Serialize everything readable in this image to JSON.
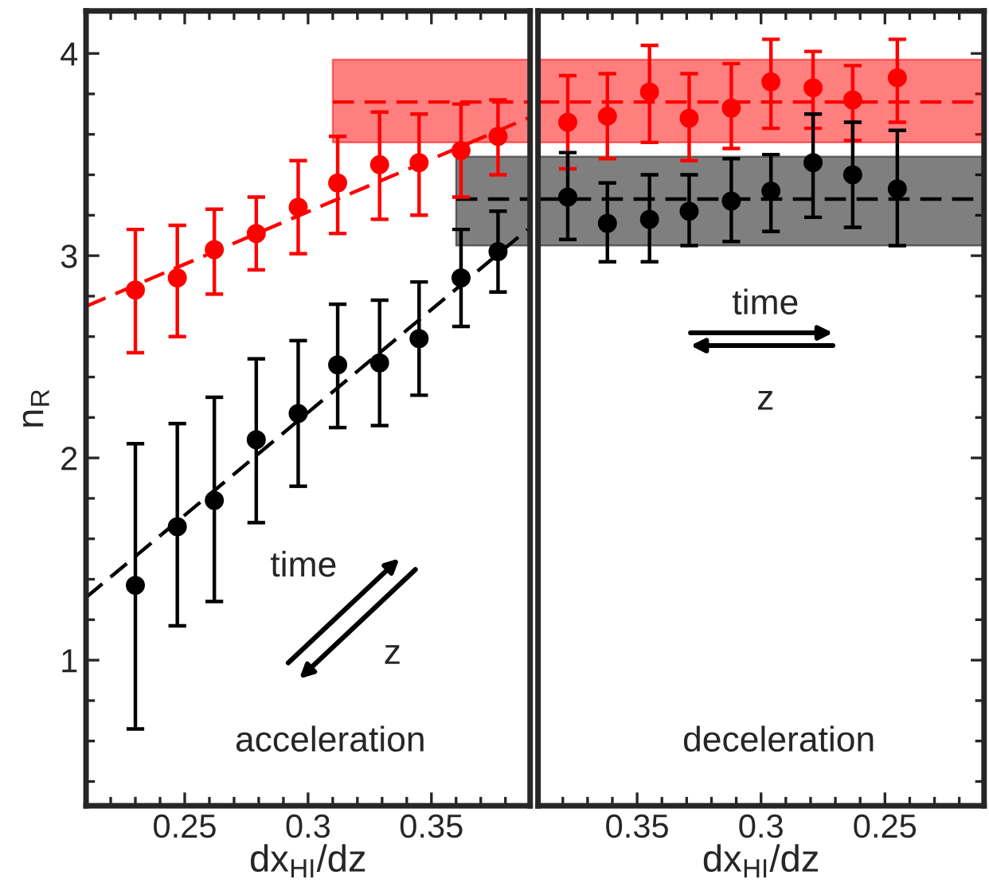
{
  "chart_data": [
    {
      "type": "scatter",
      "xlabel": "dx$_{HI}$/dz",
      "ylabel": "n$_{R}$",
      "xlim": [
        0.21,
        0.39
      ],
      "ylim": [
        0.28,
        4.21
      ],
      "xticks": [
        {
          "value": 0.22,
          "label": null
        },
        {
          "value": 0.23,
          "label": null
        },
        {
          "value": 0.24,
          "label": null
        },
        0.25,
        {
          "value": 0.26,
          "label": null
        },
        {
          "value": 0.27,
          "label": null
        },
        {
          "value": 0.28,
          "label": null
        },
        {
          "value": 0.29,
          "label": null
        },
        0.3,
        {
          "value": 0.31,
          "label": null
        },
        {
          "value": 0.32,
          "label": null
        },
        {
          "value": 0.33,
          "label": null
        },
        {
          "value": 0.34,
          "label": null
        },
        0.35,
        {
          "value": 0.36,
          "label": null
        },
        {
          "value": 0.37,
          "label": null
        },
        {
          "value": 0.38,
          "label": null
        }
      ],
      "yticks": [
        {
          "value": 0.4,
          "label": null
        },
        {
          "value": 0.6,
          "label": null
        },
        {
          "value": 0.8,
          "label": null
        },
        1,
        {
          "value": 1.2,
          "label": null
        },
        {
          "value": 1.4,
          "label": null
        },
        {
          "value": 1.6,
          "label": null
        },
        {
          "value": 1.8,
          "label": null
        },
        2,
        {
          "value": 2.2,
          "label": null
        },
        {
          "value": 2.4,
          "label": null
        },
        {
          "value": 2.6,
          "label": null
        },
        {
          "value": 2.8,
          "label": null
        },
        3,
        {
          "value": 3.2,
          "label": null
        },
        {
          "value": 3.4,
          "label": null
        },
        {
          "value": 3.6,
          "label": null
        },
        {
          "value": 3.8,
          "label": null
        },
        4
      ],
      "grid": false,
      "legend": false,
      "series": [
        {
          "type": "line",
          "color": "#ff0000",
          "x": [
            0.31,
            0.39
          ],
          "values": [
            3.76,
            3.76
          ],
          "lower": [
            3.56,
            3.56
          ],
          "upper": [
            3.97,
            3.97
          ],
          "line_style": "dashed"
        },
        {
          "type": "line",
          "color": "#000000",
          "x": [
            0.36,
            0.39
          ],
          "values": [
            3.28,
            3.28
          ],
          "lower": [
            3.05,
            3.05
          ],
          "upper": [
            3.49,
            3.49
          ],
          "line_style": "dashed"
        },
        {
          "type": "line",
          "color": "#ff0000",
          "x": [
            0.21,
            0.389
          ],
          "values": [
            2.75,
            3.68
          ],
          "line_style": "dashed"
        },
        {
          "type": "line",
          "color": "#000000",
          "x": [
            0.21,
            0.389
          ],
          "values": [
            1.31,
            3.13
          ],
          "line_style": "dashed"
        },
        {
          "marker": "circle",
          "color": "#ff0000",
          "x": [
            0.23,
            0.247,
            0.262,
            0.279,
            0.296,
            0.312,
            0.329,
            0.345,
            0.362,
            0.377
          ],
          "values": [
            2.83,
            2.89,
            3.03,
            3.11,
            3.24,
            3.36,
            3.45,
            3.46,
            3.52,
            3.59
          ],
          "errors": [
            [
              2.52,
              3.13
            ],
            [
              2.6,
              3.15
            ],
            [
              2.81,
              3.23
            ],
            [
              2.93,
              3.29
            ],
            [
              3.01,
              3.47
            ],
            [
              3.11,
              3.59
            ],
            [
              3.18,
              3.71
            ],
            [
              3.2,
              3.7
            ],
            [
              3.29,
              3.75
            ],
            [
              3.4,
              3.77
            ]
          ]
        },
        {
          "marker": "circle",
          "color": "#000000",
          "x": [
            0.23,
            0.247,
            0.262,
            0.279,
            0.296,
            0.312,
            0.329,
            0.345,
            0.362,
            0.377
          ],
          "values": [
            1.37,
            1.66,
            1.79,
            2.09,
            2.22,
            2.46,
            2.47,
            2.59,
            2.89,
            3.02
          ],
          "errors": [
            [
              0.66,
              2.07
            ],
            [
              1.17,
              2.17
            ],
            [
              1.29,
              2.3
            ],
            [
              1.68,
              2.49
            ],
            [
              1.86,
              2.58
            ],
            [
              2.15,
              2.76
            ],
            [
              2.16,
              2.78
            ],
            [
              2.31,
              2.87
            ],
            [
              2.65,
              3.13
            ],
            [
              2.82,
              3.22
            ]
          ]
        }
      ],
      "annotations": [
        "time",
        "z",
        "acceleration"
      ]
    },
    {
      "type": "scatter",
      "xlabel": "dx$_{HI}$/dz",
      "xlim": [
        0.39,
        0.21
      ],
      "ylim": [
        0.28,
        4.21
      ],
      "tick_labels": "x",
      "xticks": [
        {
          "value": 0.38,
          "label": null
        },
        {
          "value": 0.37,
          "label": null
        },
        {
          "value": 0.36,
          "label": null
        },
        0.35,
        {
          "value": 0.34,
          "label": null
        },
        {
          "value": 0.33,
          "label": null
        },
        {
          "value": 0.32,
          "label": null
        },
        {
          "value": 0.31,
          "label": null
        },
        0.3,
        {
          "value": 0.29,
          "label": null
        },
        {
          "value": 0.28,
          "label": null
        },
        {
          "value": 0.27,
          "label": null
        },
        {
          "value": 0.26,
          "label": null
        },
        0.25,
        {
          "value": 0.24,
          "label": null
        },
        {
          "value": 0.23,
          "label": null
        },
        {
          "value": 0.22,
          "label": null
        }
      ],
      "yticks": [
        {
          "value": 0.4,
          "label": null
        },
        {
          "value": 0.6,
          "label": null
        },
        {
          "value": 0.8,
          "label": null
        },
        1,
        {
          "value": 1.2,
          "label": null
        },
        {
          "value": 1.4,
          "label": null
        },
        {
          "value": 1.6,
          "label": null
        },
        {
          "value": 1.8,
          "label": null
        },
        2,
        {
          "value": 2.2,
          "label": null
        },
        {
          "value": 2.4,
          "label": null
        },
        {
          "value": 2.6,
          "label": null
        },
        {
          "value": 2.8,
          "label": null
        },
        3,
        {
          "value": 3.2,
          "label": null
        },
        {
          "value": 3.4,
          "label": null
        },
        {
          "value": 3.6,
          "label": null
        },
        {
          "value": 3.8,
          "label": null
        },
        4
      ],
      "grid": false,
      "legend": false,
      "series": [
        {
          "type": "line",
          "color": "#ff0000",
          "x": [
            0.39,
            0.21
          ],
          "values": [
            3.76,
            3.76
          ],
          "lower": [
            3.56,
            3.56
          ],
          "upper": [
            3.97,
            3.97
          ],
          "line_style": "dashed"
        },
        {
          "type": "line",
          "color": "#000000",
          "x": [
            0.39,
            0.21
          ],
          "values": [
            3.28,
            3.28
          ],
          "lower": [
            3.05,
            3.05
          ],
          "upper": [
            3.49,
            3.49
          ],
          "line_style": "dashed"
        },
        {
          "marker": "circle",
          "color": "#ff0000",
          "x": [
            0.378,
            0.362,
            0.345,
            0.329,
            0.312,
            0.296,
            0.279,
            0.263,
            0.245
          ],
          "values": [
            3.66,
            3.69,
            3.81,
            3.68,
            3.73,
            3.86,
            3.83,
            3.77,
            3.88
          ],
          "errors": [
            [
              3.43,
              3.89
            ],
            [
              3.48,
              3.9
            ],
            [
              3.56,
              4.04
            ],
            [
              3.47,
              3.9
            ],
            [
              3.53,
              3.95
            ],
            [
              3.63,
              4.07
            ],
            [
              3.63,
              4.01
            ],
            [
              3.57,
              3.94
            ],
            [
              3.66,
              4.07
            ]
          ]
        },
        {
          "marker": "circle",
          "color": "#000000",
          "x": [
            0.378,
            0.362,
            0.345,
            0.329,
            0.312,
            0.296,
            0.279,
            0.263,
            0.245
          ],
          "values": [
            3.29,
            3.16,
            3.18,
            3.22,
            3.27,
            3.32,
            3.46,
            3.4,
            3.33
          ],
          "errors": [
            [
              3.08,
              3.51
            ],
            [
              2.97,
              3.36
            ],
            [
              2.97,
              3.4
            ],
            [
              3.05,
              3.4
            ],
            [
              3.07,
              3.48
            ],
            [
              3.12,
              3.5
            ],
            [
              3.19,
              3.7
            ],
            [
              3.14,
              3.66
            ],
            [
              3.05,
              3.62
            ]
          ]
        }
      ],
      "annotations": [
        "time",
        "z",
        "deceleration"
      ]
    }
  ]
}
